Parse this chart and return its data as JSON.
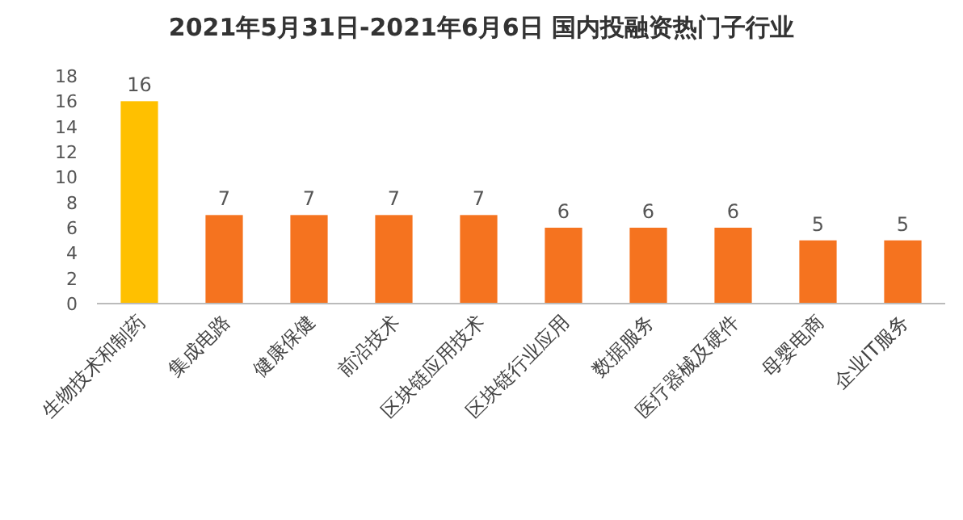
{
  "chart_data": {
    "type": "bar",
    "title": "2021年5月31日-2021年6月6日 国内投融资热门子行业",
    "categories": [
      "生物技术和制药",
      "集成电路",
      "健康保健",
      "前沿技术",
      "区块链应用技术",
      "区块链行业应用",
      "数据服务",
      "医疗器械及硬件",
      "母婴电商",
      "企业IT服务"
    ],
    "values": [
      16,
      7,
      7,
      7,
      7,
      6,
      6,
      6,
      5,
      5
    ],
    "colors": [
      "#ffc000",
      "#f5731f",
      "#f5731f",
      "#f5731f",
      "#f5731f",
      "#f5731f",
      "#f5731f",
      "#f5731f",
      "#f5731f",
      "#f5731f"
    ],
    "ylim": [
      0,
      18
    ],
    "yticks": [
      0,
      2,
      4,
      6,
      8,
      10,
      12,
      14,
      16,
      18
    ],
    "data_labels": true
  }
}
